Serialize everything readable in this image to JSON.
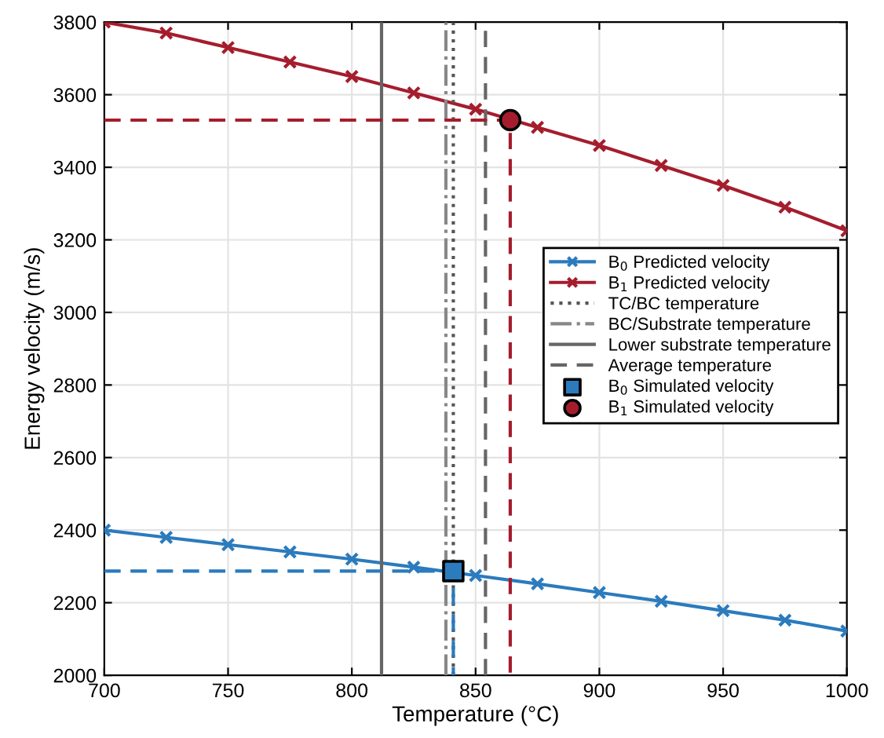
{
  "chart_data": {
    "type": "line",
    "xlabel": "Temperature (°C)",
    "ylabel": "Energy velocity (m/s)",
    "xlim": [
      700,
      1000
    ],
    "ylim": [
      2000,
      3800
    ],
    "xticks": [
      700,
      750,
      800,
      850,
      900,
      950,
      1000
    ],
    "yticks": [
      2000,
      2200,
      2400,
      2600,
      2800,
      3000,
      3200,
      3400,
      3600,
      3800
    ],
    "grid": true,
    "legend": "right",
    "series": [
      {
        "name": "B$_{0}$ Predicted velocity",
        "color": "#2b7bbd",
        "marker": "cross",
        "line_style": "solid",
        "x": [
          700,
          725,
          750,
          775,
          800,
          825,
          850,
          875,
          900,
          925,
          950,
          975,
          1000
        ],
        "values": [
          2400,
          2380,
          2360,
          2340,
          2320,
          2298,
          2275,
          2252,
          2228,
          2204,
          2178,
          2152,
          2122
        ]
      },
      {
        "name": "B$_{1}$ Predicted velocity",
        "color": "#a51d2d",
        "marker": "cross",
        "line_style": "solid",
        "x": [
          700,
          725,
          750,
          775,
          800,
          825,
          850,
          875,
          900,
          925,
          950,
          975,
          1000
        ],
        "values": [
          3800,
          3770,
          3730,
          3690,
          3650,
          3605,
          3560,
          3510,
          3460,
          3405,
          3350,
          3290,
          3225
        ]
      },
      {
        "name": "TC/BC temperature",
        "color": "#555555",
        "marker": "none",
        "line_style": "dotted",
        "x": [
          841,
          841
        ],
        "values": [
          2000,
          3800
        ]
      },
      {
        "name": "BC/Substrate temperature",
        "color": "#888888",
        "marker": "none",
        "line_style": "dashdot",
        "x": [
          838,
          838
        ],
        "values": [
          2000,
          3800
        ]
      },
      {
        "name": "Lower substrate temperature",
        "color": "#666666",
        "marker": "none",
        "line_style": "solid",
        "x": [
          812,
          812
        ],
        "values": [
          2000,
          3800
        ]
      },
      {
        "name": "Average temperature",
        "color": "#666666",
        "marker": "none",
        "line_style": "dashed",
        "x": [
          854,
          854
        ],
        "values": [
          2000,
          3800
        ]
      },
      {
        "color": "#2b7bbd",
        "marker": "none",
        "line_style": "dashed",
        "x": [
          700,
          841,
          841
        ],
        "values": [
          2287,
          2287,
          2000
        ]
      },
      {
        "color": "#a51d2d",
        "marker": "none",
        "line_style": "dashed",
        "x": [
          700,
          864,
          864
        ],
        "values": [
          3530,
          3530,
          2000
        ]
      },
      {
        "name": "B$_{0}$ Simulated velocity",
        "type": "scatter",
        "color": "#2b7bbd",
        "marker": "square",
        "x": [
          841
        ],
        "values": [
          2287
        ]
      },
      {
        "name": "B$_{1}$ Simulated velocity",
        "type": "scatter",
        "color": "#a51d2d",
        "marker": "circle",
        "x": [
          864
        ],
        "values": [
          3530
        ]
      }
    ]
  }
}
